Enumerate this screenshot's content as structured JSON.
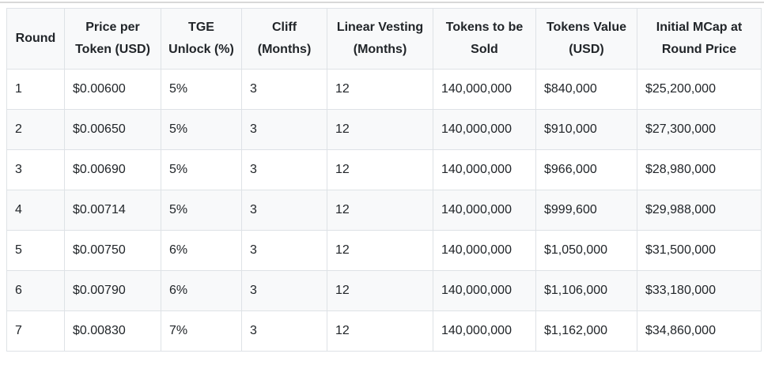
{
  "chart_data": {
    "type": "table",
    "columns": [
      "Round",
      "Price per Token (USD)",
      "TGE Unlock (%)",
      "Cliff (Months)",
      "Linear Vesting (Months)",
      "Tokens to be Sold",
      "Tokens Value (USD)",
      "Initial MCap at Round Price"
    ],
    "rows": [
      [
        "1",
        "$0.00600",
        "5%",
        "3",
        "12",
        "140,000,000",
        "$840,000",
        "$25,200,000"
      ],
      [
        "2",
        "$0.00650",
        "5%",
        "3",
        "12",
        "140,000,000",
        "$910,000",
        "$27,300,000"
      ],
      [
        "3",
        "$0.00690",
        "5%",
        "3",
        "12",
        "140,000,000",
        "$966,000",
        "$28,980,000"
      ],
      [
        "4",
        "$0.00714",
        "5%",
        "3",
        "12",
        "140,000,000",
        "$999,600",
        "$29,988,000"
      ],
      [
        "5",
        "$0.00750",
        "6%",
        "3",
        "12",
        "140,000,000",
        "$1,050,000",
        "$31,500,000"
      ],
      [
        "6",
        "$0.00790",
        "6%",
        "3",
        "12",
        "140,000,000",
        "$1,106,000",
        "$33,180,000"
      ],
      [
        "7",
        "$0.00830",
        "7%",
        "3",
        "12",
        "140,000,000",
        "$1,162,000",
        "$34,860,000"
      ]
    ],
    "layout": {
      "grid": "full-borders",
      "zebra_striping": "even-rows",
      "header_alignment": "center",
      "body_alignment": "left"
    }
  },
  "colors": {
    "header_bg": "#f8f9fa",
    "stripe_bg": "#f8f9fa",
    "border": "#dee2e6",
    "text": "#212529",
    "top_rule": "#d8d8d8",
    "background": "#ffffff"
  }
}
